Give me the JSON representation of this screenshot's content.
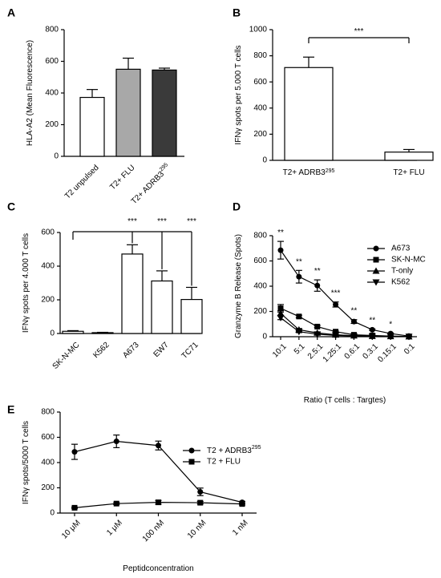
{
  "chart_data": [
    {
      "panel": "A",
      "type": "bar",
      "ylabel": "HLA-A2 (Mean Fluorescence)",
      "ylim": [
        0,
        800
      ],
      "yticks": [
        0,
        200,
        400,
        600,
        800
      ],
      "categories": [
        "T2 unpulsed",
        "T2+ FLU",
        "T2+ ADRB3"
      ],
      "category_sup": [
        "",
        "",
        "295"
      ],
      "values": [
        372,
        550,
        545
      ],
      "errors": [
        50,
        70,
        12
      ],
      "fills": [
        "#ffffff",
        "#a8a8a8",
        "#3a3a3a"
      ],
      "significance": []
    },
    {
      "panel": "B",
      "type": "bar",
      "ylabel": "IFNγ spots per 5.000 T cells",
      "ylim": [
        0,
        1000
      ],
      "yticks": [
        0,
        200,
        400,
        600,
        800,
        1000
      ],
      "categories": [
        "T2+ ADRB3",
        "T2+ FLU"
      ],
      "category_sup": [
        "295",
        ""
      ],
      "values": [
        710,
        63
      ],
      "errors": [
        80,
        20
      ],
      "fills": [
        "#ffffff",
        "#ffffff"
      ],
      "significance": [
        {
          "from": 0,
          "to": 1,
          "label": "***"
        }
      ]
    },
    {
      "panel": "C",
      "type": "bar",
      "ylabel": "IFNγ spots per 4.000 T cells",
      "ylim": [
        0,
        600
      ],
      "yticks": [
        0,
        200,
        400,
        600
      ],
      "categories": [
        "SK-N-MC",
        "K562",
        "A673",
        "EW7",
        "TC71"
      ],
      "values": [
        13,
        5,
        472,
        312,
        202
      ],
      "errors": [
        4,
        2,
        55,
        60,
        72
      ],
      "fills": [
        "#ffffff",
        "#ffffff",
        "#ffffff",
        "#ffffff",
        "#ffffff"
      ],
      "significance": [
        {
          "from": 0,
          "to": 2,
          "label": "***"
        },
        {
          "from": 0,
          "to": 3,
          "label": "***"
        },
        {
          "from": 0,
          "to": 4,
          "label": "***"
        }
      ]
    },
    {
      "panel": "D",
      "type": "line",
      "xlabel": "Ratio (T cells : Targtes)",
      "ylabel": "Granzyme B Release (Spots)",
      "ylim": [
        0,
        800
      ],
      "yticks": [
        0,
        200,
        400,
        600,
        800
      ],
      "categories": [
        "10:1",
        "5:1",
        "2.5:1",
        "1.25:1",
        "0.6:1",
        "0.3:1",
        "0.15:1",
        "0:1"
      ],
      "legend_position": "right",
      "series": [
        {
          "name": "A673",
          "marker": "circle",
          "values": [
            685,
            475,
            405,
            255,
            120,
            55,
            25,
            5
          ],
          "errors": [
            70,
            50,
            45,
            20,
            15,
            6,
            5,
            2
          ]
        },
        {
          "name": "SK-N-MC",
          "marker": "square",
          "values": [
            225,
            160,
            80,
            40,
            15,
            10,
            5,
            2
          ],
          "errors": [
            30,
            10,
            8,
            5,
            3,
            2,
            2,
            1
          ]
        },
        {
          "name": "T-only",
          "marker": "triangle-up",
          "values": [
            185,
            55,
            30,
            15,
            8,
            4,
            2,
            1
          ],
          "errors": [
            20,
            10,
            5,
            3,
            2,
            1,
            1,
            1
          ]
        },
        {
          "name": "K562",
          "marker": "triangle-down",
          "values": [
            150,
            40,
            20,
            10,
            5,
            3,
            2,
            1
          ],
          "errors": [
            15,
            8,
            5,
            3,
            2,
            1,
            1,
            1
          ]
        }
      ],
      "annotations": [
        "**",
        "**",
        "**",
        "***",
        "**",
        "**",
        "*",
        ""
      ]
    },
    {
      "panel": "E",
      "type": "line",
      "xlabel": "Peptidconcentration",
      "ylabel": "IFNγ spots/5000 T cells",
      "ylim": [
        0,
        800
      ],
      "yticks": [
        0,
        200,
        400,
        600,
        800
      ],
      "categories": [
        "10 μM",
        "1 μM",
        "100 nM",
        "10 nM",
        "1 nM"
      ],
      "legend_position": "right",
      "series": [
        {
          "name": "T2 + ADRB3",
          "name_sup": "295",
          "marker": "circle",
          "values": [
            485,
            568,
            535,
            168,
            85
          ],
          "errors": [
            60,
            50,
            35,
            30,
            8
          ]
        },
        {
          "name": "T2 + FLU",
          "marker": "square",
          "values": [
            42,
            75,
            85,
            82,
            72
          ],
          "errors": [
            5,
            8,
            15,
            10,
            8
          ]
        }
      ]
    }
  ],
  "panel_labels": [
    "A",
    "B",
    "C",
    "D",
    "E"
  ]
}
